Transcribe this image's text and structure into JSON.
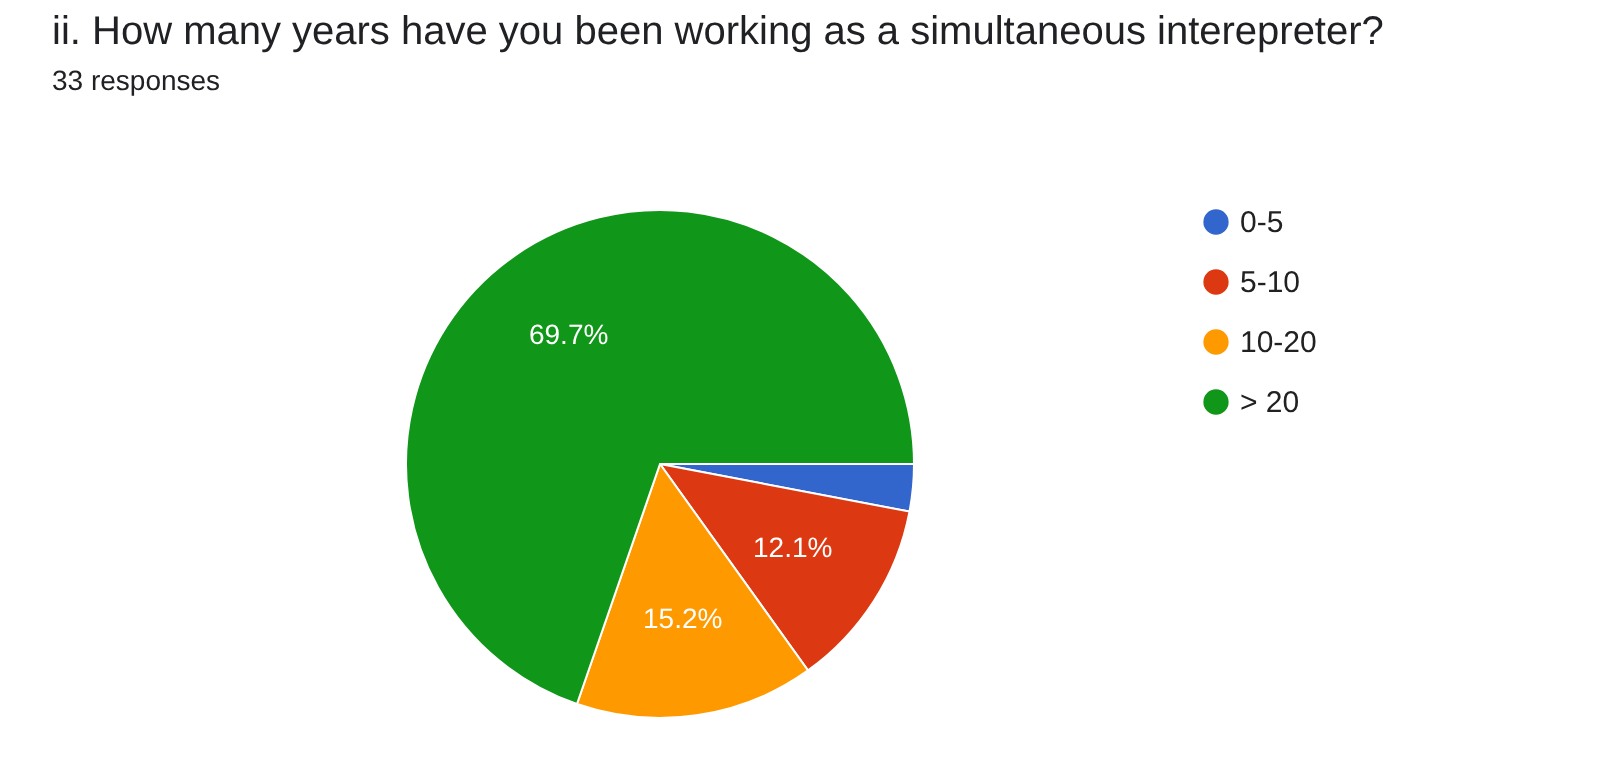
{
  "chart_data": {
    "type": "pie",
    "title": "ii. How many years have you been working as a simultaneous interepreter?",
    "subtitle": "33 responses",
    "categories": [
      "0-5",
      "5-10",
      "10-20",
      "> 20"
    ],
    "values": [
      3.0,
      12.1,
      15.2,
      69.7
    ],
    "colors": [
      "#3366cc",
      "#dc3912",
      "#ff9900",
      "#109618"
    ],
    "value_labels": [
      null,
      "12.1%",
      "15.2%",
      "69.7%"
    ],
    "legend": "right"
  }
}
